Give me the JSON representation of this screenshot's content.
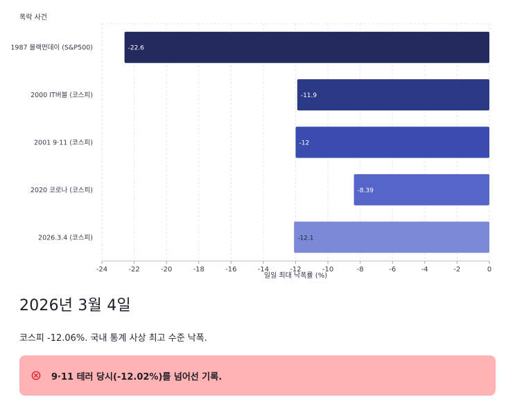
{
  "chart_data": {
    "type": "bar",
    "orientation": "horizontal",
    "ylabel": "폭락 사건",
    "xlabel": "일일 최대 낙폭률 (%)",
    "categories": [
      "1987 블랙먼데이 (S&P500)",
      "2000 IT버블 (코스피)",
      "2001 9·11 (코스피)",
      "2020 코로나 (코스피)",
      "2026.3.4 (코스피)"
    ],
    "values": [
      -22.6,
      -11.9,
      -12,
      -8.39,
      -12.1
    ],
    "value_labels": [
      "-22.6",
      "-11.9",
      "-12",
      "-8.39",
      "-12.1"
    ],
    "xlim": [
      -24,
      0
    ],
    "x_ticks": [
      -24,
      -22,
      -20,
      -18,
      -16,
      -14,
      -12,
      -10,
      -8,
      -6,
      -4,
      -2,
      0
    ],
    "bar_colors": [
      "#232b5e",
      "#2c3a86",
      "#3a4cad",
      "#5565c8",
      "#7c89d6"
    ],
    "label_colors": [
      "#ffffff",
      "#ffffff",
      "#ffffff",
      "#ffffff",
      "#1f2330"
    ],
    "grid": true
  },
  "heading": "2026년 3월 4일",
  "summary": "코스피 -12.06%. 국내 통계 사상 최고 수준 낙폭.",
  "alert": {
    "text": "9·11 테러 당시(-12.02%)를 넘어선 기록.",
    "icon": "error-circle-icon",
    "icon_color": "#e0242b",
    "background": "#ffb3b5"
  }
}
